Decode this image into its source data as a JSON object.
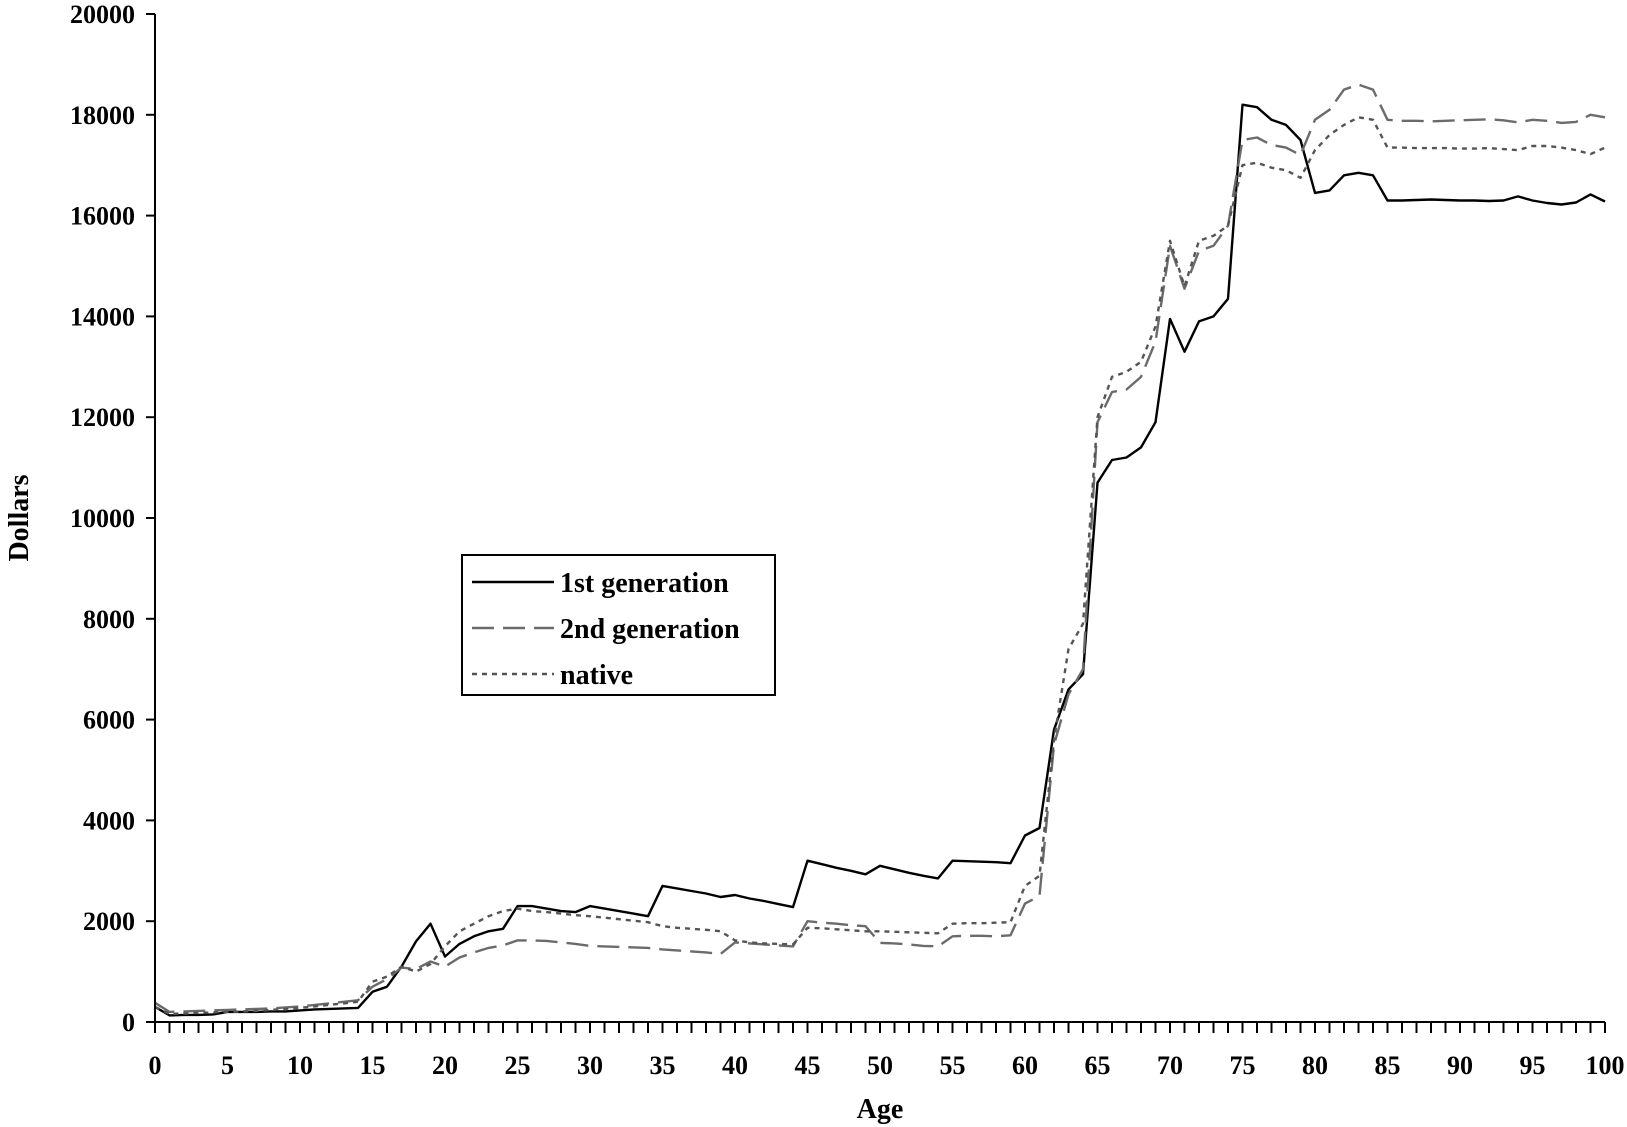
{
  "chart_data": {
    "type": "line",
    "xlabel": "Age",
    "ylabel": "Dollars",
    "xlim": [
      0,
      100
    ],
    "ylim": [
      0,
      20000
    ],
    "x_ticks": [
      0,
      5,
      10,
      15,
      20,
      25,
      30,
      35,
      40,
      45,
      50,
      55,
      60,
      65,
      70,
      75,
      80,
      85,
      90,
      95,
      100
    ],
    "y_ticks": [
      0,
      2000,
      4000,
      6000,
      8000,
      10000,
      12000,
      14000,
      16000,
      18000,
      20000
    ],
    "grid": false,
    "legend_position": "center-left",
    "x": [
      0,
      1,
      2,
      3,
      4,
      5,
      6,
      7,
      8,
      9,
      10,
      11,
      12,
      13,
      14,
      15,
      16,
      17,
      18,
      19,
      20,
      21,
      22,
      23,
      24,
      25,
      26,
      27,
      28,
      29,
      30,
      31,
      32,
      33,
      34,
      35,
      36,
      37,
      38,
      39,
      40,
      41,
      42,
      43,
      44,
      45,
      46,
      47,
      48,
      49,
      50,
      51,
      52,
      53,
      54,
      55,
      56,
      57,
      58,
      59,
      60,
      61,
      62,
      63,
      64,
      65,
      66,
      67,
      68,
      69,
      70,
      71,
      72,
      73,
      74,
      75,
      76,
      77,
      78,
      79,
      80,
      81,
      82,
      83,
      84,
      85,
      86,
      87,
      88,
      89,
      90,
      91,
      92,
      93,
      94,
      95,
      96,
      97,
      98,
      99,
      100
    ],
    "series": [
      {
        "name": "1st generation",
        "color": "#000000",
        "style": "solid",
        "values": [
          300,
          130,
          140,
          140,
          150,
          200,
          200,
          200,
          210,
          210,
          230,
          250,
          260,
          270,
          280,
          600,
          700,
          1100,
          1600,
          1950,
          1300,
          1550,
          1700,
          1800,
          1850,
          2300,
          2300,
          2250,
          2200,
          2180,
          2300,
          2250,
          2200,
          2150,
          2100,
          2700,
          2650,
          2600,
          2550,
          2480,
          2520,
          2450,
          2400,
          2340,
          2280,
          3200,
          3130,
          3060,
          3000,
          2930,
          3100,
          3030,
          2960,
          2900,
          2850,
          3200,
          3190,
          3180,
          3170,
          3150,
          3700,
          3850,
          5800,
          6600,
          6900,
          10700,
          11150,
          11200,
          11400,
          11900,
          13950,
          13300,
          13900,
          14000,
          14350,
          18200,
          18150,
          17900,
          17800,
          17500,
          16450,
          16500,
          16800,
          16850,
          16800,
          16300,
          16300,
          16310,
          16320,
          16310,
          16300,
          16300,
          16290,
          16300,
          16380,
          16300,
          16250,
          16220,
          16260,
          16420,
          16280
        ]
      },
      {
        "name": "2nd generation",
        "color": "#6b6b6b",
        "style": "dashed",
        "values": [
          380,
          200,
          210,
          220,
          230,
          240,
          250,
          260,
          270,
          290,
          310,
          340,
          370,
          400,
          430,
          700,
          850,
          1080,
          1050,
          1200,
          1100,
          1280,
          1380,
          1470,
          1520,
          1620,
          1620,
          1610,
          1580,
          1550,
          1510,
          1500,
          1490,
          1480,
          1470,
          1440,
          1420,
          1400,
          1380,
          1350,
          1580,
          1560,
          1540,
          1520,
          1500,
          2000,
          1970,
          1950,
          1920,
          1900,
          1570,
          1560,
          1540,
          1510,
          1500,
          1700,
          1710,
          1710,
          1700,
          1720,
          2350,
          2500,
          5500,
          6500,
          7000,
          11900,
          12500,
          12550,
          12800,
          13500,
          15400,
          14550,
          15300,
          15400,
          15800,
          17500,
          17550,
          17400,
          17350,
          17200,
          17900,
          18100,
          18500,
          18600,
          18500,
          17900,
          17880,
          17880,
          17870,
          17880,
          17890,
          17900,
          17910,
          17890,
          17850,
          17900,
          17880,
          17840,
          17860,
          18000,
          17950
        ]
      },
      {
        "name": "native",
        "color": "#555555",
        "style": "dotted",
        "values": [
          300,
          160,
          170,
          180,
          190,
          200,
          210,
          220,
          240,
          260,
          280,
          310,
          340,
          370,
          400,
          800,
          900,
          1100,
          1000,
          1150,
          1500,
          1800,
          1950,
          2100,
          2200,
          2250,
          2200,
          2180,
          2150,
          2120,
          2100,
          2070,
          2040,
          2010,
          1980,
          1900,
          1870,
          1850,
          1830,
          1800,
          1620,
          1580,
          1560,
          1550,
          1540,
          1870,
          1860,
          1840,
          1820,
          1800,
          1800,
          1790,
          1780,
          1770,
          1760,
          1950,
          1960,
          1960,
          1970,
          1980,
          2700,
          2900,
          5600,
          7400,
          7900,
          12000,
          12800,
          12900,
          13100,
          13800,
          15500,
          14600,
          15500,
          15600,
          15800,
          17000,
          17050,
          16950,
          16900,
          16750,
          17300,
          17600,
          17800,
          17950,
          17900,
          17350,
          17350,
          17340,
          17340,
          17340,
          17330,
          17330,
          17340,
          17320,
          17300,
          17380,
          17380,
          17350,
          17300,
          17220,
          17350
        ]
      }
    ]
  }
}
